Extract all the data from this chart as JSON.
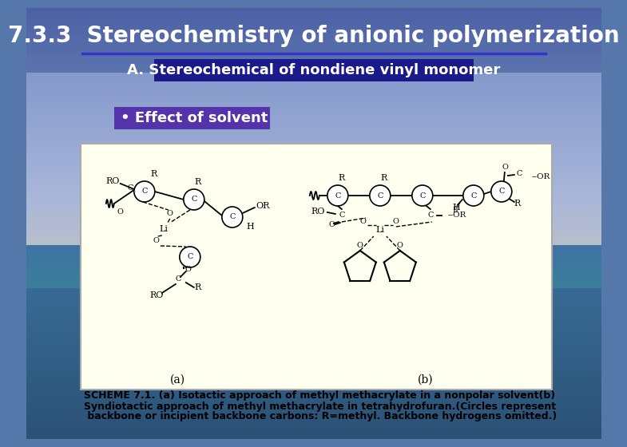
{
  "title": "7.3.3  Stereochemistry of anionic polymerization",
  "title_color": "#FFFFFF",
  "title_fontsize": 20,
  "subtitle": "A. Stereochemical of nondiene vinyl monomer",
  "subtitle_bg": "#1a1a8c",
  "subtitle_color": "#FFFFFF",
  "subtitle_fontsize": 13,
  "bullet": "• Effect of solvent",
  "bullet_bg": "#5533aa",
  "bullet_color": "#FFFFFF",
  "bullet_fontsize": 13,
  "scheme_label_a": "(a)",
  "scheme_label_b": "(b)",
  "caption_line1": "SCHEME 7.1. (a) Isotactic approach of methyl methacrylate in a nonpolar solvent(b)",
  "caption_line2": "Syndiotactic approach of methyl methacrylate in tetrahydrofuran.(Circles represent",
  "caption_line3": " backbone or incipient backbone carbons: R=methyl. Backbone hydrogens omitted.)",
  "caption_fontsize": 9,
  "diagram_box_color": "#FFFFF0",
  "diagram_box_edge": "#aaaaaa",
  "separator_color": "#3333cc",
  "separator_linewidth": 2.5
}
